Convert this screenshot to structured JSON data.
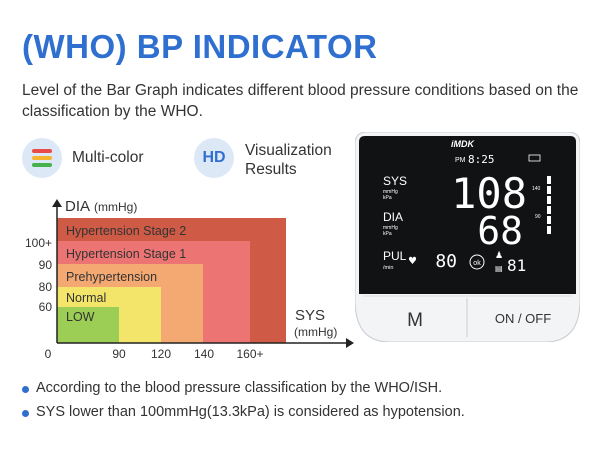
{
  "header": {
    "title": "(WHO) BP INDICATOR",
    "description": "Level of the Bar Graph indicates different blood pressure conditions based on the classification by the WHO."
  },
  "features": [
    {
      "label": "Multi-color",
      "icon": "multicolor-bars-icon"
    },
    {
      "label": "Visualization Results",
      "icon_text": "HD",
      "line1": "Visualization",
      "line2": "Results",
      "icon": "hd-icon"
    }
  ],
  "chart": {
    "y_axis_label": "DIA",
    "y_axis_unit": "(mmHg)",
    "x_axis_label": "SYS",
    "x_axis_unit": "(mmHg)",
    "y_ticks": [
      "100+",
      "90",
      "80",
      "60"
    ],
    "x_ticks": [
      "0",
      "90",
      "120",
      "140",
      "160+"
    ],
    "levels": [
      {
        "name": "Hypertension Stage 2",
        "color": "#cf5a45"
      },
      {
        "name": "Hypertension Stage 1",
        "color": "#ec7573"
      },
      {
        "name": "Prehypertension",
        "color": "#f5a972"
      },
      {
        "name": "Normal",
        "color": "#f2e56a"
      },
      {
        "name": "LOW",
        "color": "#9ccd55"
      }
    ]
  },
  "device": {
    "brand": "iMDK",
    "time_prefix": "PM",
    "time": "8:25",
    "sys_label": "SYS",
    "dia_label": "DIA",
    "pul_label": "PUL",
    "unit_mmhg": "mmHg",
    "unit_kpa": "kPa",
    "unit_min": "/min",
    "sys_value": "108",
    "dia_value": "68",
    "pul_value": "80",
    "memory": "81",
    "ok_label": "ok",
    "scale_140": "140",
    "scale_90": "90",
    "button_m": "M",
    "button_power": "ON / OFF"
  },
  "notes": [
    "According to the blood pressure classification by the WHO/ISH.",
    "SYS lower than 100mmHg(13.3kPa) is considered as hypotension."
  ],
  "colors": {
    "accent": "#2f6fd0",
    "icon_bg": "#dde8f7"
  }
}
